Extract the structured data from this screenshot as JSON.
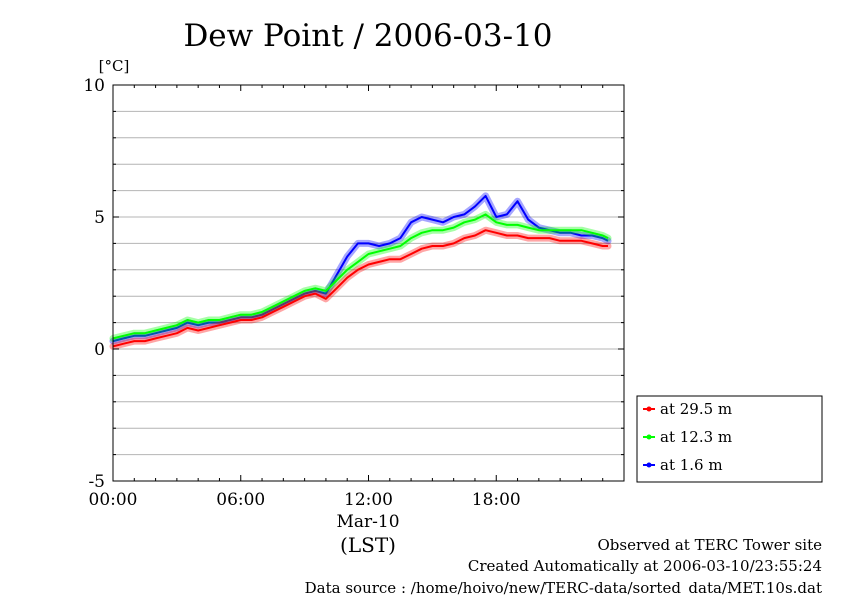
{
  "chart_data": {
    "type": "line",
    "title": "Dew Point / 2006-03-10",
    "ylabel": "[°C]",
    "xlabel": "(LST)",
    "date_label": "Mar-10",
    "xlim": [
      0,
      24
    ],
    "ylim": [
      -5,
      10
    ],
    "x_ticks": [
      {
        "x": 0,
        "label": "00:00"
      },
      {
        "x": 6,
        "label": "06:00"
      },
      {
        "x": 12,
        "label": "12:00"
      },
      {
        "x": 18,
        "label": "18:00"
      }
    ],
    "y_ticks": [
      {
        "y": -5,
        "label": "-5"
      },
      {
        "y": 0,
        "label": "0"
      },
      {
        "y": 5,
        "label": "5"
      },
      {
        "y": 10,
        "label": "10"
      }
    ],
    "grid": true,
    "legend_position": "right",
    "x": [
      0,
      0.5,
      1,
      1.5,
      2,
      2.5,
      3,
      3.5,
      4,
      4.5,
      5,
      5.5,
      6,
      6.5,
      7,
      7.5,
      8,
      8.5,
      9,
      9.5,
      10,
      10.5,
      11,
      11.5,
      12,
      12.5,
      13,
      13.5,
      14,
      14.5,
      15,
      15.5,
      16,
      16.5,
      17,
      17.5,
      18,
      18.5,
      19,
      19.5,
      20,
      20.5,
      21,
      21.5,
      22,
      22.5,
      23,
      23.25
    ],
    "series": [
      {
        "name": "at 29.5 m",
        "color": "#ff0000",
        "values": [
          0.1,
          0.2,
          0.3,
          0.3,
          0.4,
          0.5,
          0.6,
          0.8,
          0.7,
          0.8,
          0.9,
          1.0,
          1.1,
          1.1,
          1.2,
          1.4,
          1.6,
          1.8,
          2.0,
          2.1,
          1.9,
          2.3,
          2.7,
          3.0,
          3.2,
          3.3,
          3.4,
          3.4,
          3.6,
          3.8,
          3.9,
          3.9,
          4.0,
          4.2,
          4.3,
          4.5,
          4.4,
          4.3,
          4.3,
          4.2,
          4.2,
          4.2,
          4.1,
          4.1,
          4.1,
          4.0,
          3.9,
          3.9
        ]
      },
      {
        "name": "at 12.3 m",
        "color": "#00ff00",
        "values": [
          0.4,
          0.5,
          0.6,
          0.6,
          0.7,
          0.8,
          0.9,
          1.1,
          1.0,
          1.1,
          1.1,
          1.2,
          1.3,
          1.3,
          1.4,
          1.6,
          1.8,
          2.0,
          2.2,
          2.3,
          2.2,
          2.6,
          3.0,
          3.3,
          3.6,
          3.7,
          3.8,
          3.9,
          4.2,
          4.4,
          4.5,
          4.5,
          4.6,
          4.8,
          4.9,
          5.1,
          4.8,
          4.7,
          4.7,
          4.6,
          4.5,
          4.5,
          4.5,
          4.5,
          4.5,
          4.4,
          4.3,
          4.2
        ]
      },
      {
        "name": "at 1.6 m",
        "color": "#0000ff",
        "values": [
          0.3,
          0.4,
          0.5,
          0.5,
          0.6,
          0.7,
          0.8,
          1.0,
          0.9,
          1.0,
          1.0,
          1.1,
          1.2,
          1.2,
          1.3,
          1.5,
          1.7,
          1.9,
          2.1,
          2.2,
          2.1,
          2.8,
          3.5,
          4.0,
          4.0,
          3.9,
          4.0,
          4.2,
          4.8,
          5.0,
          4.9,
          4.8,
          5.0,
          5.1,
          5.4,
          5.8,
          5.0,
          5.1,
          5.6,
          4.9,
          4.6,
          4.5,
          4.4,
          4.4,
          4.3,
          4.3,
          4.2,
          4.1
        ]
      }
    ]
  },
  "footer": {
    "line1": "Observed at TERC Tower site",
    "line2": "Created Automatically at 2006-03-10/23:55:24",
    "line3": "Data source : /home/hoivo/new/TERC-data/sorted_data/MET.10s.dat"
  }
}
